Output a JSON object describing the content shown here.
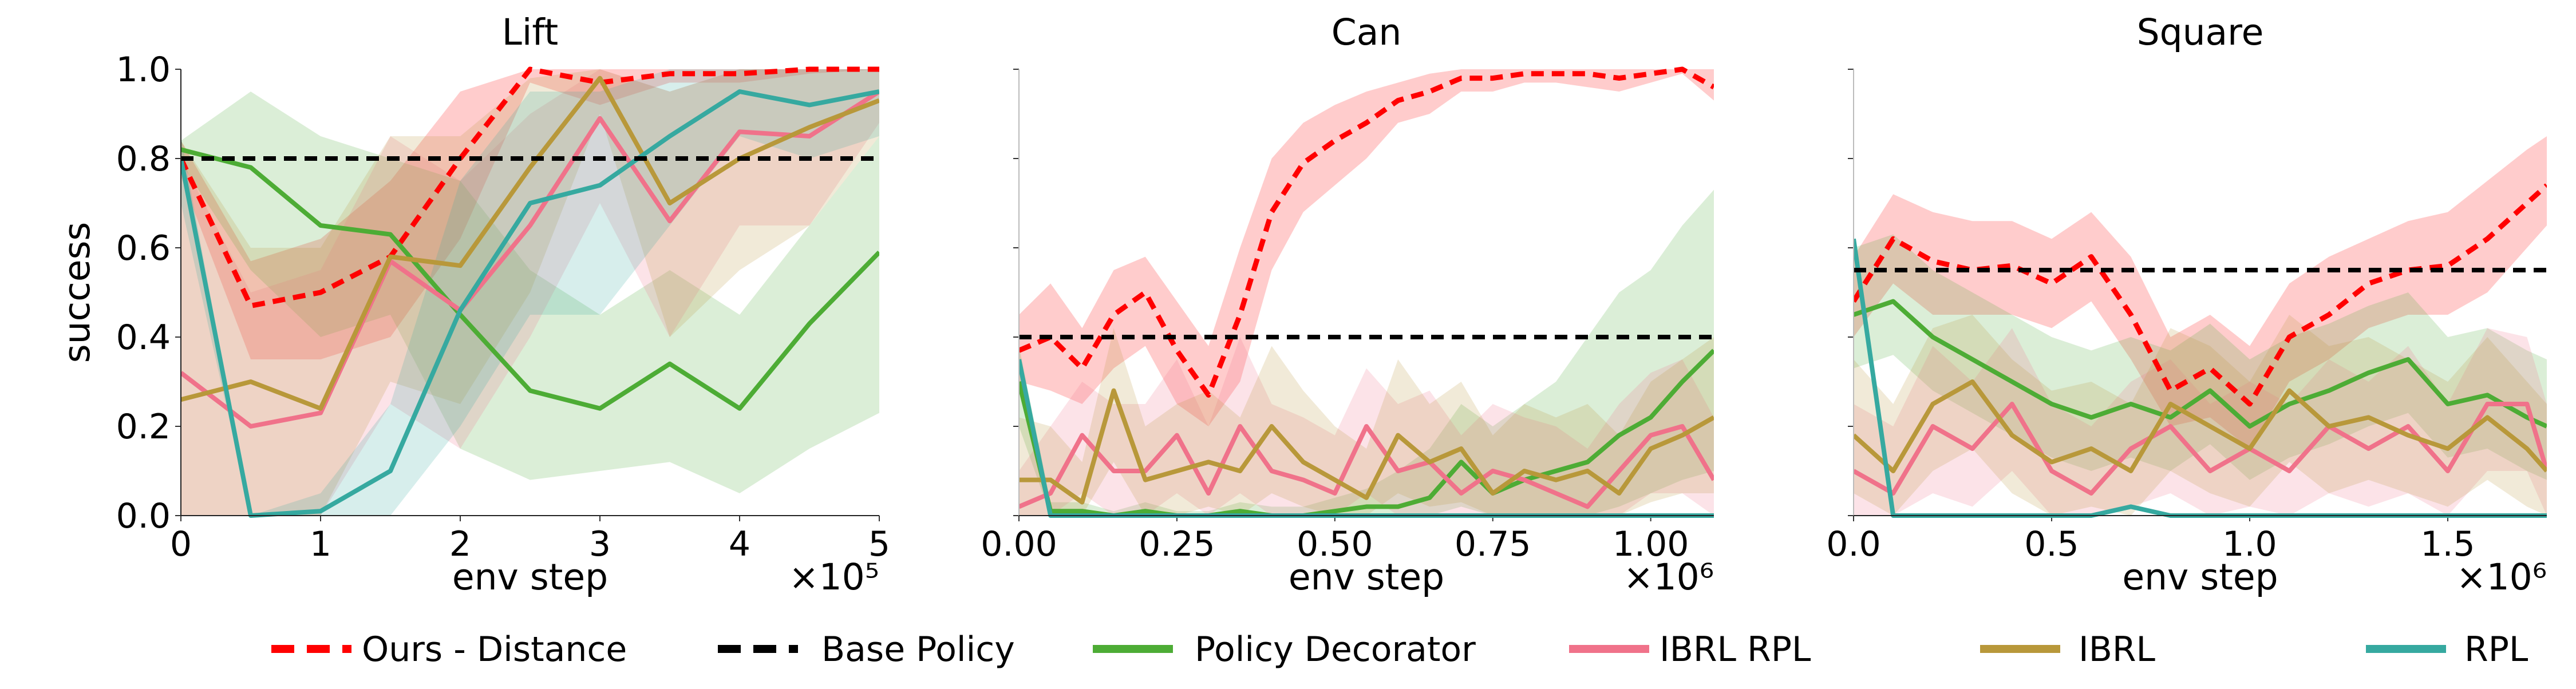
{
  "legend": [
    {
      "name": "Ours - Distance",
      "color": "#ff0000",
      "dash": true
    },
    {
      "name": "Base Policy",
      "color": "#000000",
      "dash": true
    },
    {
      "name": "Policy Decorator",
      "color": "#4dac35",
      "dash": false
    },
    {
      "name": "IBRL RPL",
      "color": "#f0728a",
      "dash": false
    },
    {
      "name": "IBRL",
      "color": "#b8983a",
      "dash": false
    },
    {
      "name": "RPL",
      "color": "#36a9a0",
      "dash": false
    }
  ],
  "chart_data": [
    {
      "type": "line",
      "title": "Lift",
      "y_label": "success",
      "x_label": "env step",
      "x_offset_text": "×10⁵",
      "xlim": [
        0,
        5
      ],
      "xticks": [
        0,
        1,
        2,
        3,
        4,
        5
      ],
      "ylim": [
        0,
        1
      ],
      "yticks": [
        {
          "value": 0,
          "label": "0.0"
        },
        {
          "value": 0.2,
          "label": "0.2"
        },
        {
          "value": 0.4,
          "label": "0.4"
        },
        {
          "value": 0.6,
          "label": "0.6"
        },
        {
          "value": 0.8,
          "label": "0.8"
        },
        {
          "value": 1,
          "label": "1.0"
        }
      ],
      "ytick_labels": true,
      "base_policy": 0.8,
      "x": [
        0,
        0.5,
        1,
        1.5,
        2,
        2.5,
        3,
        3.5,
        4,
        4.5,
        5
      ],
      "series": [
        {
          "values": [
            0.8,
            0.47,
            0.5,
            0.58,
            0.8,
            1.0,
            0.97,
            0.99,
            0.99,
            1.0,
            1.0
          ],
          "lower": [
            0.76,
            0.35,
            0.35,
            0.4,
            0.62,
            0.97,
            0.92,
            0.97,
            0.97,
            0.99,
            1.0
          ],
          "upper": [
            0.84,
            0.57,
            0.62,
            0.75,
            0.95,
            1.0,
            1.0,
            1.0,
            1.0,
            1.0,
            1.0
          ]
        },
        {
          "values": [
            0.82,
            0.78,
            0.65,
            0.63,
            0.45,
            0.28,
            0.24,
            0.34,
            0.24,
            0.43,
            0.59
          ],
          "lower": [
            0.79,
            0.55,
            0.4,
            0.45,
            0.15,
            0.08,
            0.1,
            0.12,
            0.05,
            0.15,
            0.23
          ],
          "upper": [
            0.84,
            0.95,
            0.85,
            0.8,
            0.75,
            0.55,
            0.45,
            0.55,
            0.45,
            0.65,
            0.85
          ]
        },
        {
          "values": [
            0.32,
            0.2,
            0.23,
            0.57,
            0.46,
            0.65,
            0.89,
            0.66,
            0.86,
            0.85,
            0.95
          ],
          "lower": [
            0.0,
            0.0,
            0.0,
            0.25,
            0.15,
            0.4,
            0.7,
            0.4,
            0.65,
            0.65,
            0.88
          ],
          "upper": [
            0.8,
            0.5,
            0.55,
            0.85,
            0.75,
            0.9,
            1.0,
            0.95,
            1.0,
            1.0,
            1.0
          ]
        },
        {
          "values": [
            0.26,
            0.3,
            0.24,
            0.58,
            0.56,
            0.78,
            0.98,
            0.7,
            0.8,
            0.87,
            0.93
          ],
          "lower": [
            0.0,
            0.0,
            0.0,
            0.3,
            0.25,
            0.5,
            0.9,
            0.4,
            0.55,
            0.65,
            0.85
          ],
          "upper": [
            0.84,
            0.6,
            0.6,
            0.85,
            0.85,
            0.98,
            1.0,
            0.95,
            1.0,
            1.0,
            1.0
          ]
        },
        {
          "values": [
            0.8,
            0.0,
            0.01,
            0.1,
            0.46,
            0.7,
            0.74,
            0.85,
            0.95,
            0.92,
            0.95
          ],
          "lower": [
            0.7,
            0.0,
            0.0,
            0.0,
            0.2,
            0.45,
            0.45,
            0.65,
            0.85,
            0.8,
            0.85
          ],
          "upper": [
            0.85,
            0.0,
            0.05,
            0.25,
            0.75,
            0.95,
            0.95,
            1.0,
            1.0,
            1.0,
            1.0
          ]
        }
      ]
    },
    {
      "type": "line",
      "title": "Can",
      "x_label": "env step",
      "x_offset_text": "×10⁶",
      "xlim": [
        0,
        1.1
      ],
      "xticks": [
        {
          "value": 0,
          "label": "0.00"
        },
        {
          "value": 0.25,
          "label": "0.25"
        },
        {
          "value": 0.5,
          "label": "0.50"
        },
        {
          "value": 0.75,
          "label": "0.75"
        },
        {
          "value": 1,
          "label": "1.00"
        }
      ],
      "ylim": [
        0,
        1
      ],
      "yticks": [
        0,
        0.2,
        0.4,
        0.6,
        0.8,
        1
      ],
      "ytick_labels": false,
      "base_policy": 0.4,
      "x": [
        0,
        0.05,
        0.1,
        0.15,
        0.2,
        0.25,
        0.3,
        0.35,
        0.4,
        0.45,
        0.5,
        0.55,
        0.6,
        0.65,
        0.7,
        0.75,
        0.8,
        0.85,
        0.9,
        0.95,
        1,
        1.05,
        1.1
      ],
      "series": [
        {
          "values": [
            0.37,
            0.4,
            0.33,
            0.45,
            0.5,
            0.37,
            0.27,
            0.45,
            0.68,
            0.79,
            0.84,
            0.88,
            0.93,
            0.95,
            0.98,
            0.98,
            0.99,
            0.99,
            0.99,
            0.98,
            0.99,
            1.0,
            0.96
          ],
          "lower": [
            0.3,
            0.28,
            0.25,
            0.33,
            0.38,
            0.25,
            0.2,
            0.3,
            0.55,
            0.68,
            0.74,
            0.8,
            0.88,
            0.9,
            0.95,
            0.95,
            0.97,
            0.97,
            0.96,
            0.95,
            0.97,
            0.99,
            0.93
          ],
          "upper": [
            0.45,
            0.52,
            0.42,
            0.55,
            0.58,
            0.48,
            0.38,
            0.6,
            0.8,
            0.88,
            0.92,
            0.95,
            0.97,
            0.99,
            1.0,
            1.0,
            1.0,
            1.0,
            1.0,
            1.0,
            1.0,
            1.0,
            1.0
          ]
        },
        {
          "values": [
            0.3,
            0.01,
            0.01,
            0.0,
            0.01,
            0.0,
            0.0,
            0.01,
            0.0,
            0.0,
            0.01,
            0.02,
            0.02,
            0.04,
            0.12,
            0.05,
            0.08,
            0.1,
            0.12,
            0.18,
            0.22,
            0.3,
            0.37
          ],
          "lower": [
            0.2,
            0.0,
            0.0,
            0.0,
            0.0,
            0.0,
            0.0,
            0.0,
            0.0,
            0.0,
            0.0,
            0.0,
            0.0,
            0.0,
            0.02,
            0.0,
            0.0,
            0.0,
            0.0,
            0.02,
            0.05,
            0.08,
            0.1
          ],
          "upper": [
            0.38,
            0.03,
            0.03,
            0.01,
            0.03,
            0.01,
            0.01,
            0.03,
            0.02,
            0.02,
            0.04,
            0.06,
            0.1,
            0.15,
            0.25,
            0.2,
            0.25,
            0.3,
            0.4,
            0.5,
            0.55,
            0.65,
            0.73
          ]
        },
        {
          "values": [
            0.02,
            0.05,
            0.18,
            0.1,
            0.1,
            0.18,
            0.05,
            0.2,
            0.1,
            0.08,
            0.05,
            0.2,
            0.1,
            0.12,
            0.05,
            0.1,
            0.08,
            0.05,
            0.02,
            0.1,
            0.18,
            0.2,
            0.08
          ],
          "lower": [
            0.0,
            0.0,
            0.05,
            0.0,
            0.0,
            0.05,
            0.0,
            0.05,
            0.0,
            0.0,
            0.0,
            0.05,
            0.0,
            0.0,
            0.0,
            0.0,
            0.0,
            0.0,
            0.0,
            0.0,
            0.05,
            0.05,
            0.0
          ],
          "upper": [
            0.1,
            0.2,
            0.3,
            0.25,
            0.25,
            0.35,
            0.2,
            0.4,
            0.25,
            0.22,
            0.18,
            0.33,
            0.25,
            0.28,
            0.18,
            0.25,
            0.22,
            0.2,
            0.15,
            0.25,
            0.32,
            0.35,
            0.22
          ]
        },
        {
          "values": [
            0.08,
            0.08,
            0.03,
            0.28,
            0.08,
            0.1,
            0.12,
            0.1,
            0.2,
            0.12,
            0.08,
            0.04,
            0.18,
            0.12,
            0.15,
            0.05,
            0.1,
            0.08,
            0.1,
            0.05,
            0.15,
            0.18,
            0.22
          ],
          "lower": [
            0.0,
            0.0,
            0.0,
            0.12,
            0.0,
            0.0,
            0.02,
            0.0,
            0.05,
            0.02,
            0.0,
            0.0,
            0.05,
            0.02,
            0.03,
            0.0,
            0.0,
            0.0,
            0.0,
            0.0,
            0.03,
            0.05,
            0.05
          ],
          "upper": [
            0.22,
            0.2,
            0.12,
            0.42,
            0.2,
            0.25,
            0.28,
            0.22,
            0.38,
            0.28,
            0.2,
            0.15,
            0.35,
            0.25,
            0.3,
            0.18,
            0.25,
            0.22,
            0.25,
            0.18,
            0.3,
            0.35,
            0.4
          ]
        },
        {
          "values": [
            0.35,
            0.0,
            0.0,
            0.0,
            0.0,
            0.0,
            0.0,
            0.0,
            0.0,
            0.0,
            0.0,
            0.0,
            0.0,
            0.0,
            0.0,
            0.0,
            0.0,
            0.0,
            0.0,
            0.0,
            0.0,
            0.0,
            0.0
          ]
        }
      ]
    },
    {
      "type": "line",
      "title": "Square",
      "x_label": "env step",
      "x_offset_text": "×10⁶",
      "xlim": [
        0,
        1.75
      ],
      "xticks": [
        {
          "value": 0,
          "label": "0.0"
        },
        {
          "value": 0.5,
          "label": "0.5"
        },
        {
          "value": 1,
          "label": "1.0"
        },
        {
          "value": 1.5,
          "label": "1.5"
        }
      ],
      "ylim": [
        0,
        1
      ],
      "yticks": [
        0,
        0.2,
        0.4,
        0.6,
        0.8,
        1
      ],
      "ytick_labels": false,
      "base_policy": 0.55,
      "x": [
        0,
        0.1,
        0.2,
        0.3,
        0.4,
        0.5,
        0.6,
        0.7,
        0.8,
        0.9,
        1,
        1.1,
        1.2,
        1.3,
        1.4,
        1.5,
        1.6,
        1.7,
        1.75
      ],
      "series": [
        {
          "values": [
            0.48,
            0.62,
            0.57,
            0.55,
            0.56,
            0.52,
            0.58,
            0.45,
            0.28,
            0.33,
            0.25,
            0.4,
            0.45,
            0.52,
            0.55,
            0.56,
            0.62,
            0.7,
            0.74
          ],
          "lower": [
            0.4,
            0.52,
            0.45,
            0.45,
            0.45,
            0.42,
            0.48,
            0.35,
            0.2,
            0.22,
            0.15,
            0.3,
            0.35,
            0.42,
            0.45,
            0.45,
            0.5,
            0.6,
            0.65
          ],
          "upper": [
            0.58,
            0.72,
            0.68,
            0.66,
            0.66,
            0.62,
            0.68,
            0.58,
            0.4,
            0.45,
            0.38,
            0.52,
            0.58,
            0.62,
            0.66,
            0.68,
            0.75,
            0.82,
            0.85
          ]
        },
        {
          "values": [
            0.45,
            0.48,
            0.4,
            0.35,
            0.3,
            0.25,
            0.22,
            0.25,
            0.22,
            0.28,
            0.2,
            0.25,
            0.28,
            0.32,
            0.35,
            0.25,
            0.27,
            0.22,
            0.2
          ],
          "lower": [
            0.33,
            0.36,
            0.28,
            0.23,
            0.18,
            0.13,
            0.1,
            0.13,
            0.1,
            0.16,
            0.08,
            0.13,
            0.16,
            0.2,
            0.23,
            0.13,
            0.15,
            0.1,
            0.08
          ],
          "upper": [
            0.6,
            0.63,
            0.55,
            0.5,
            0.45,
            0.4,
            0.37,
            0.4,
            0.37,
            0.43,
            0.35,
            0.4,
            0.43,
            0.47,
            0.5,
            0.4,
            0.42,
            0.37,
            0.35
          ]
        },
        {
          "values": [
            0.1,
            0.05,
            0.2,
            0.15,
            0.25,
            0.1,
            0.05,
            0.15,
            0.2,
            0.1,
            0.15,
            0.1,
            0.2,
            0.15,
            0.2,
            0.1,
            0.25,
            0.25,
            0.1
          ],
          "lower": [
            0.0,
            0.0,
            0.05,
            0.02,
            0.1,
            0.0,
            0.0,
            0.02,
            0.05,
            0.0,
            0.02,
            0.0,
            0.05,
            0.02,
            0.05,
            0.0,
            0.1,
            0.1,
            0.0
          ],
          "upper": [
            0.25,
            0.2,
            0.38,
            0.3,
            0.42,
            0.25,
            0.2,
            0.3,
            0.35,
            0.25,
            0.3,
            0.25,
            0.35,
            0.3,
            0.38,
            0.25,
            0.42,
            0.4,
            0.25
          ]
        },
        {
          "values": [
            0.18,
            0.1,
            0.25,
            0.3,
            0.18,
            0.12,
            0.15,
            0.1,
            0.25,
            0.2,
            0.15,
            0.28,
            0.2,
            0.22,
            0.18,
            0.15,
            0.22,
            0.15,
            0.1
          ],
          "lower": [
            0.05,
            0.0,
            0.1,
            0.15,
            0.05,
            0.0,
            0.02,
            0.0,
            0.1,
            0.05,
            0.02,
            0.12,
            0.05,
            0.08,
            0.05,
            0.02,
            0.08,
            0.02,
            0.0
          ],
          "upper": [
            0.35,
            0.25,
            0.42,
            0.45,
            0.35,
            0.28,
            0.3,
            0.25,
            0.42,
            0.38,
            0.3,
            0.45,
            0.38,
            0.4,
            0.35,
            0.3,
            0.4,
            0.3,
            0.25
          ]
        },
        {
          "values": [
            0.62,
            0.0,
            0.0,
            0.0,
            0.0,
            0.0,
            0.0,
            0.02,
            0.0,
            0.0,
            0.0,
            0.0,
            0.0,
            0.0,
            0.0,
            0.0,
            0.0,
            0.0,
            0.0
          ]
        }
      ]
    }
  ]
}
